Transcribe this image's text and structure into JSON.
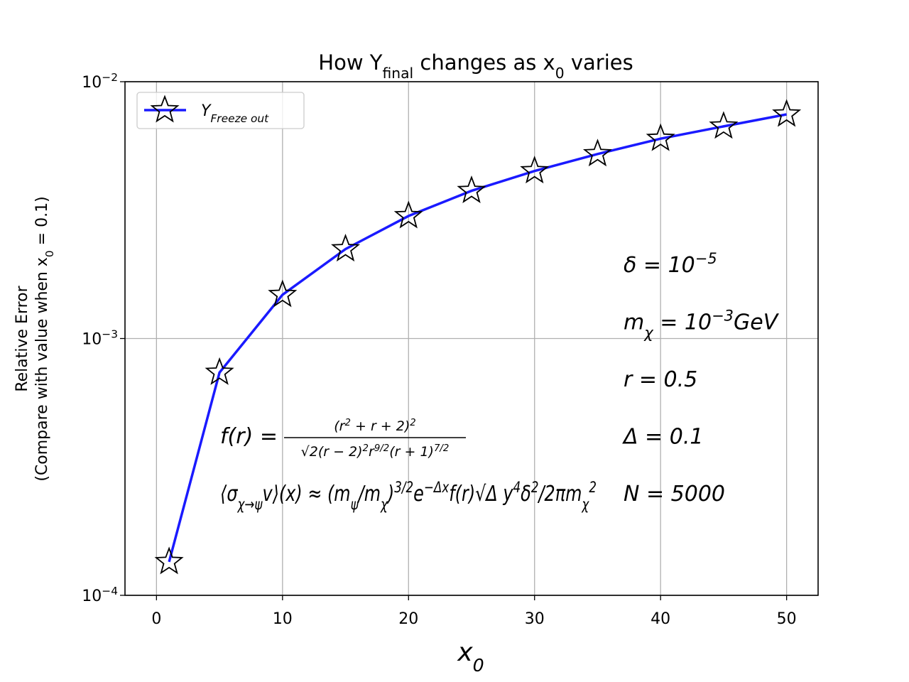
{
  "chart_data": {
    "type": "line",
    "title": "How Y_{final} changes as x_{0} varies",
    "x_label": "x_{0}",
    "y_label": [
      "Relative Error",
      "(Compare with value when x_{0} = 0.1)"
    ],
    "x": [
      1,
      5,
      10,
      15,
      20,
      25,
      30,
      35,
      40,
      45,
      50
    ],
    "series": [
      {
        "name": "Y_{Freeze   out}",
        "color": "#1a1aff",
        "marker": "star",
        "values": [
          0.000135,
          0.000737,
          0.00148,
          0.00223,
          0.003,
          0.00376,
          0.00449,
          0.00523,
          0.006,
          0.0067,
          0.00746
        ]
      }
    ],
    "xlim": [
      -2.5,
      52.5
    ],
    "ylim": [
      0.0001,
      0.01
    ],
    "y_scale": "log",
    "xticks": [
      0,
      10,
      20,
      30,
      40,
      50
    ],
    "yticks": [
      {
        "value": 0.0001,
        "label": "10^{−4}"
      },
      {
        "value": 0.001,
        "label": "10^{−3}"
      },
      {
        "value": 0.01,
        "label": "10^{−2}"
      }
    ],
    "grid": true,
    "legend": "upper left",
    "annotations": {
      "formula_f": {
        "lhs": "f(r) =",
        "numerator": "(r^{2} + r + 2)^{2}",
        "denominator": "√2(r − 2)^{2}r^{9/2}(r + 1)^{7/2}"
      },
      "formula_sigma": "⟨σ_{χ→ψ}v⟩(x) ≈ (m_{ψ}/m_{χ})^{3/2}e^{−Δx}f(r)√Δ y^{4}δ^{2}/2πm_{χ}^{2}",
      "parameters": [
        "δ = 10^{−5}",
        "m_{χ} = 10^{−3}GeV",
        "r = 0.5",
        "Δ = 0.1",
        "N = 5000"
      ]
    }
  }
}
